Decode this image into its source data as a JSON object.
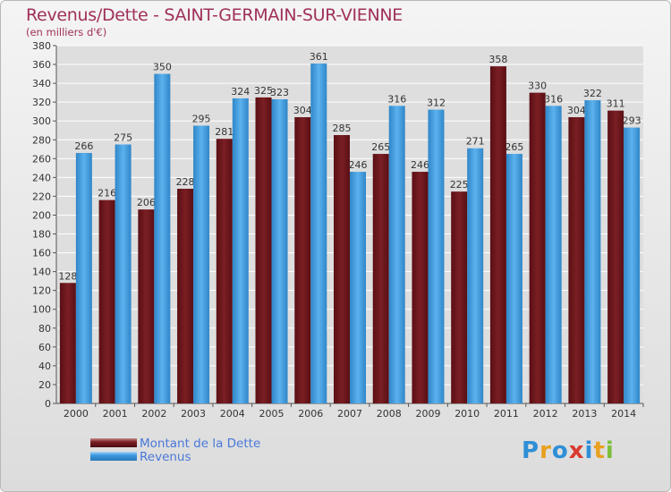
{
  "header": {
    "title": "Revenus/Dette - SAINT-GERMAIN-SUR-VIENNE",
    "subtitle": "(en milliers d'€)"
  },
  "colors": {
    "dette": "#7a1f24",
    "revenus": "#3b99e0",
    "grid": "#ffffff",
    "axis_text": "#333333"
  },
  "chart_data": {
    "type": "bar",
    "title": "Revenus/Dette - SAINT-GERMAIN-SUR-VIENNE",
    "ylabel": "(en milliers d'€)",
    "xlabel": "",
    "categories": [
      "2000",
      "2001",
      "2002",
      "2003",
      "2004",
      "2005",
      "2006",
      "2007",
      "2008",
      "2009",
      "2010",
      "2011",
      "2012",
      "2013",
      "2014"
    ],
    "series": [
      {
        "name": "Montant de la Dette",
        "values": [
          128,
          216,
          206,
          228,
          281,
          325,
          304,
          285,
          265,
          246,
          225,
          358,
          330,
          304,
          311
        ]
      },
      {
        "name": "Revenus",
        "values": [
          266,
          275,
          350,
          295,
          324,
          323,
          361,
          246,
          316,
          312,
          271,
          265,
          316,
          322,
          293
        ]
      }
    ],
    "ylim": [
      0,
      380
    ],
    "yticks": [
      0,
      20,
      40,
      60,
      80,
      100,
      120,
      140,
      160,
      180,
      200,
      220,
      240,
      260,
      280,
      300,
      320,
      340,
      360,
      380
    ],
    "grid": true,
    "legend": "bottom-left"
  },
  "logo": {
    "letters": [
      "P",
      "r",
      "o",
      "x",
      "i",
      "t",
      "i"
    ],
    "colors": [
      "#2e8fd6",
      "#e8a020",
      "#2e8fd6",
      "#d93a30",
      "#2e8fd6",
      "#e8a020",
      "#7bbf3a"
    ]
  }
}
